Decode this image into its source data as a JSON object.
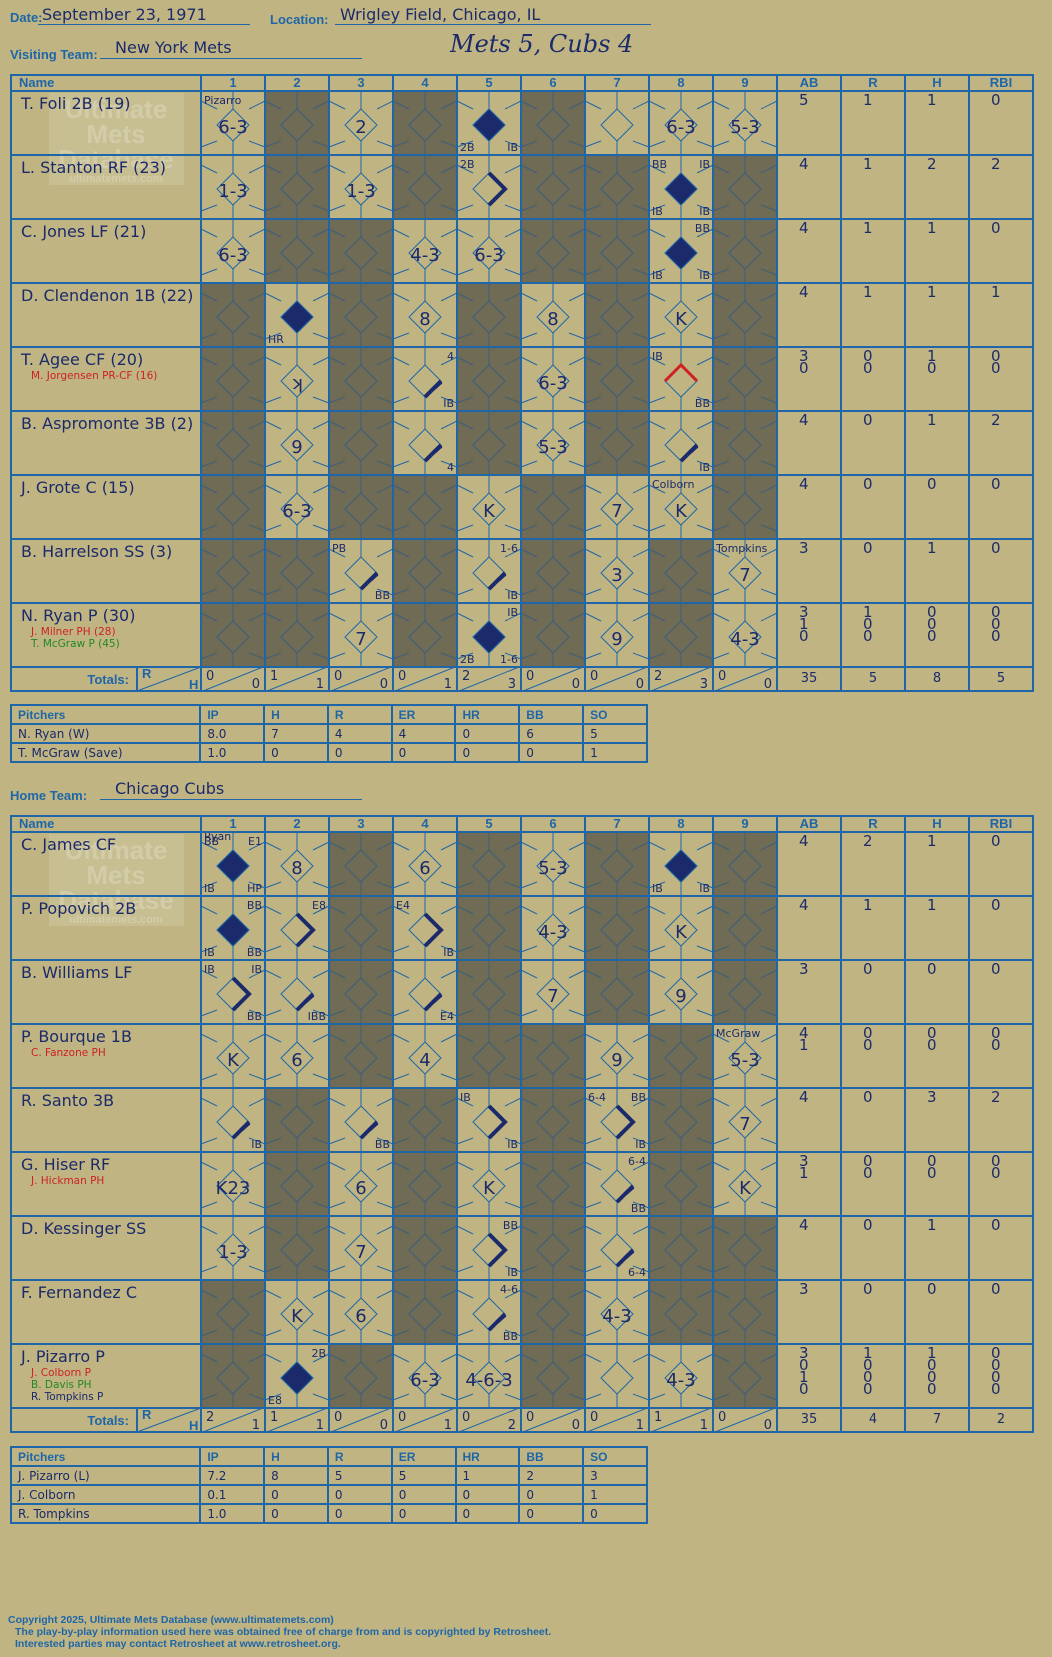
{
  "header": {
    "date_label": "Date:",
    "date": "September 23, 1971",
    "location_label": "Location:",
    "location": "Wrigley Field, Chicago, IL",
    "game_title": "Mets 5, Cubs 4"
  },
  "visitor": {
    "team_label": "Visiting Team:",
    "team": "New York Mets",
    "headers": [
      "Name",
      "1",
      "2",
      "3",
      "4",
      "5",
      "6",
      "7",
      "8",
      "9",
      "AB",
      "R",
      "H",
      "RBI"
    ],
    "totals_label": "Totals:",
    "rh_label": [
      "R",
      "H"
    ],
    "watermark": [
      "Ultimate",
      "Mets",
      "Database",
      "ultimatemets.com"
    ],
    "players": [
      {
        "name": "T. Foli 2B (19)",
        "subs": [],
        "stats": [
          [
            "5",
            "1",
            "1",
            "0"
          ]
        ],
        "shaded": [
          2,
          4,
          6
        ],
        "cells": {
          "1": {
            "r": "6-3",
            "tl": "Pizarro",
            "tlcolor": "red"
          },
          "3": {
            "r": "2"
          },
          "5": {
            "dia": "score",
            "bl": "2B",
            "br": "IB"
          },
          "8": {
            "r": "6-3"
          },
          "9": {
            "r": "5-3"
          }
        }
      },
      {
        "name": "L. Stanton RF (23)",
        "subs": [],
        "stats": [
          [
            "4",
            "1",
            "2",
            "2"
          ]
        ],
        "shaded": [
          2,
          4,
          6,
          7,
          9
        ],
        "cells": {
          "1": {
            "r": "1-3"
          },
          "3": {
            "r": "1-3"
          },
          "5": {
            "dia": "2nd",
            "tl": "2B"
          },
          "8": {
            "dia": "score",
            "tl": "BB",
            "tr": "IB",
            "bl": "IB",
            "br": "IB"
          }
        }
      },
      {
        "name": "C. Jones LF (21)",
        "subs": [],
        "stats": [
          [
            "4",
            "1",
            "1",
            "0"
          ]
        ],
        "shaded": [
          2,
          3,
          6,
          7,
          9
        ],
        "cells": {
          "1": {
            "r": "6-3"
          },
          "4": {
            "r": "4-3"
          },
          "5": {
            "r": "6-3"
          },
          "8": {
            "dia": "score",
            "tr": "BB",
            "bl": "IB",
            "br": "IB"
          }
        }
      },
      {
        "name": "D. Clendenon 1B (22)",
        "subs": [],
        "stats": [
          [
            "4",
            "1",
            "1",
            "1"
          ]
        ],
        "shaded": [
          1,
          3,
          5,
          7,
          9
        ],
        "cells": {
          "2": {
            "dia": "score",
            "bl": "HR"
          },
          "4": {
            "r": "8"
          },
          "6": {
            "r": "8"
          },
          "8": {
            "r": "K"
          }
        }
      },
      {
        "name": "T. Agee CF (20)",
        "subs": [
          {
            "name": "M. Jorgensen PR-CF (16)",
            "color": "red"
          }
        ],
        "stats": [
          [
            "3",
            "0",
            "1",
            "0"
          ],
          [
            "0",
            "0",
            "0",
            "0"
          ]
        ],
        "shaded": [
          1,
          3,
          5,
          7,
          9
        ],
        "cells": {
          "2": {
            "r": "ʞ"
          },
          "4": {
            "dia": "1st",
            "tr": "4",
            "br": "IB"
          },
          "6": {
            "r": "6-3"
          },
          "8": {
            "dia": "red3",
            "tl": "IB",
            "tlcolor": "red",
            "br": "BB"
          }
        }
      },
      {
        "name": "B. Aspromonte 3B (2)",
        "subs": [],
        "stats": [
          [
            "4",
            "0",
            "1",
            "2"
          ]
        ],
        "shaded": [
          1,
          3,
          5,
          7,
          9
        ],
        "cells": {
          "2": {
            "r": "9"
          },
          "4": {
            "dia": "1st",
            "br": "4"
          },
          "6": {
            "r": "5-3"
          },
          "8": {
            "dia": "1st",
            "br": "IB"
          }
        }
      },
      {
        "name": "J. Grote C (15)",
        "subs": [],
        "stats": [
          [
            "4",
            "0",
            "0",
            "0"
          ]
        ],
        "shaded": [
          1,
          3,
          4,
          6,
          9
        ],
        "cells": {
          "2": {
            "r": "6-3"
          },
          "5": {
            "r": "K"
          },
          "7": {
            "r": "7"
          },
          "8": {
            "r": "K",
            "tl": "Colborn",
            "tlcolor": "red"
          }
        }
      },
      {
        "name": "B. Harrelson SS (3)",
        "subs": [],
        "stats": [
          [
            "3",
            "0",
            "1",
            "0"
          ]
        ],
        "shaded": [
          1,
          2,
          4,
          6,
          8
        ],
        "cells": {
          "3": {
            "dia": "1st",
            "tl": "PB",
            "br": "BB"
          },
          "5": {
            "dia": "1st",
            "tr": "1-6",
            "br": "IB"
          },
          "7": {
            "r": "3"
          },
          "9": {
            "r": "7",
            "tl": "Tompkins",
            "tlcolor": "red"
          }
        }
      },
      {
        "name": "N. Ryan P (30)",
        "subs": [
          {
            "name": "J. Milner PH (28)",
            "color": "red"
          },
          {
            "name": "T. McGraw P (45)",
            "color": "green"
          }
        ],
        "stats": [
          [
            "3",
            "1",
            "0",
            "0"
          ],
          [
            "1",
            "0",
            "0",
            "0"
          ],
          [
            "0",
            "0",
            "0",
            "0"
          ]
        ],
        "shaded": [
          1,
          2,
          4,
          6,
          8
        ],
        "cells": {
          "3": {
            "r": "7"
          },
          "5": {
            "dia": "score",
            "tr": "IB",
            "bl": "2B",
            "br": "1-6"
          },
          "7": {
            "r": "9"
          },
          "9": {
            "r": "4-3",
            "rcolor": "red"
          }
        }
      }
    ],
    "totals": {
      "innings": [
        [
          "0",
          "0"
        ],
        [
          "1",
          "1"
        ],
        [
          "0",
          "0"
        ],
        [
          "0",
          "1"
        ],
        [
          "2",
          "3"
        ],
        [
          "0",
          "0"
        ],
        [
          "0",
          "0"
        ],
        [
          "2",
          "3"
        ],
        [
          "0",
          "0"
        ]
      ],
      "stats": [
        "35",
        "5",
        "8",
        "5"
      ]
    },
    "pitchers": {
      "headers": [
        "Pitchers",
        "IP",
        "H",
        "R",
        "ER",
        "HR",
        "BB",
        "SO"
      ],
      "rows": [
        [
          "N. Ryan (W)",
          "8.0",
          "7",
          "4",
          "4",
          "0",
          "6",
          "5"
        ],
        [
          "T. McGraw (Save)",
          "1.0",
          "0",
          "0",
          "0",
          "0",
          "0",
          "1"
        ]
      ]
    }
  },
  "home": {
    "team_label": "Home Team:",
    "team": "Chicago Cubs",
    "headers": [
      "Name",
      "1",
      "2",
      "3",
      "4",
      "5",
      "6",
      "7",
      "8",
      "9",
      "AB",
      "R",
      "H",
      "RBI"
    ],
    "totals_label": "Totals:",
    "rh_label": [
      "R",
      "H"
    ],
    "watermark": [
      "Ultimate",
      "Mets",
      "Database",
      "ultimatemets.com"
    ],
    "players": [
      {
        "name": "C. James CF",
        "subs": [],
        "stats": [
          [
            "4",
            "2",
            "1",
            "0"
          ]
        ],
        "shaded": [
          3,
          5,
          7,
          9
        ],
        "cells": {
          "1": {
            "dia": "score",
            "tl": "BB",
            "tr": "E1",
            "bl": "IB",
            "br": "HP",
            "top": "Ryan",
            "topcolor": "red"
          },
          "2": {
            "r": "8"
          },
          "4": {
            "r": "6"
          },
          "6": {
            "r": "5-3"
          },
          "8": {
            "dia": "score",
            "bl": "IB",
            "br": "IB"
          }
        }
      },
      {
        "name": "P. Popovich 2B",
        "subs": [],
        "stats": [
          [
            "4",
            "1",
            "1",
            "0"
          ]
        ],
        "shaded": [
          3,
          5,
          7,
          9
        ],
        "cells": {
          "1": {
            "dia": "score",
            "tr": "BB",
            "bl": "IB",
            "br": "BB"
          },
          "2": {
            "dia": "2nd",
            "tr": "E8"
          },
          "4": {
            "dia": "2nd",
            "tl": "E4",
            "br": "IB"
          },
          "6": {
            "r": "4-3"
          },
          "8": {
            "r": "K"
          }
        }
      },
      {
        "name": "B. Williams LF",
        "subs": [],
        "stats": [
          [
            "3",
            "0",
            "0",
            "0"
          ]
        ],
        "shaded": [
          3,
          5,
          7,
          9
        ],
        "cells": {
          "1": {
            "dia": "2nd",
            "tl": "IB",
            "tr": "IB",
            "br": "BB"
          },
          "2": {
            "dia": "1st",
            "br": "IBB"
          },
          "4": {
            "dia": "1st",
            "br": "E4"
          },
          "6": {
            "r": "7"
          },
          "8": {
            "r": "9"
          }
        }
      },
      {
        "name": "P. Bourque 1B",
        "subs": [
          {
            "name": "C. Fanzone PH",
            "color": "red"
          }
        ],
        "stats": [
          [
            "4",
            "0",
            "0",
            "0"
          ],
          [
            "1",
            "0",
            "0",
            "0"
          ]
        ],
        "shaded": [
          3,
          5,
          6,
          8
        ],
        "cells": {
          "1": {
            "r": "K"
          },
          "2": {
            "r": "6"
          },
          "4": {
            "r": "4"
          },
          "7": {
            "r": "9"
          },
          "9": {
            "r": "5-3",
            "rcolor": "red",
            "tl": "McGraw",
            "tlcolor": "red"
          }
        }
      },
      {
        "name": "R. Santo 3B",
        "subs": [],
        "stats": [
          [
            "4",
            "0",
            "3",
            "2"
          ]
        ],
        "shaded": [
          2,
          4,
          6,
          8
        ],
        "cells": {
          "1": {
            "dia": "1st",
            "br": "IB"
          },
          "3": {
            "dia": "1st",
            "br": "BB"
          },
          "5": {
            "dia": "2nd",
            "tl": "IB",
            "br": "IB"
          },
          "7": {
            "dia": "2nd",
            "tl": "6-4",
            "tr": "BB",
            "br": "IB"
          },
          "9": {
            "r": "7"
          }
        }
      },
      {
        "name": "G. Hiser RF",
        "subs": [
          {
            "name": "J. Hickman PH",
            "color": "red"
          }
        ],
        "stats": [
          [
            "3",
            "0",
            "0",
            "0"
          ],
          [
            "1",
            "0",
            "0",
            "0"
          ]
        ],
        "shaded": [
          2,
          4,
          6,
          8
        ],
        "cells": {
          "1": {
            "r": "K23"
          },
          "3": {
            "r": "6"
          },
          "5": {
            "r": "K"
          },
          "7": {
            "dia": "1st",
            "tr": "6-4",
            "br": "BB"
          },
          "9": {
            "r": "K",
            "rcolor": "red"
          }
        }
      },
      {
        "name": "D. Kessinger SS",
        "subs": [],
        "stats": [
          [
            "4",
            "0",
            "1",
            "0"
          ]
        ],
        "shaded": [
          2,
          4,
          6,
          8,
          9
        ],
        "cells": {
          "1": {
            "r": "1-3"
          },
          "3": {
            "r": "7"
          },
          "5": {
            "dia": "2nd",
            "tr": "BB",
            "br": "IB"
          },
          "7": {
            "dia": "1st",
            "br": "6-4"
          }
        }
      },
      {
        "name": "F. Fernandez C",
        "subs": [],
        "stats": [
          [
            "3",
            "0",
            "0",
            "0"
          ]
        ],
        "shaded": [
          1,
          4,
          6,
          8,
          9
        ],
        "cells": {
          "2": {
            "r": "K"
          },
          "3": {
            "r": "6"
          },
          "5": {
            "dia": "1st",
            "tr": "4-6",
            "br": "BB"
          },
          "7": {
            "r": "4-3"
          }
        }
      },
      {
        "name": "J. Pizarro P",
        "subs": [
          {
            "name": "J. Colborn P",
            "color": "red"
          },
          {
            "name": "B. Davis PH",
            "color": "green"
          },
          {
            "name": "R. Tompkins P",
            "color": "navy"
          }
        ],
        "stats": [
          [
            "3",
            "1",
            "1",
            "0"
          ],
          [
            "0",
            "0",
            "0",
            "0"
          ],
          [
            "1",
            "0",
            "0",
            "0"
          ],
          [
            "0",
            "0",
            "0",
            "0"
          ]
        ],
        "shaded": [
          1,
          3,
          6,
          9
        ],
        "cells": {
          "2": {
            "dia": "score",
            "tr": "2B",
            "bl": "E8"
          },
          "4": {
            "r": "6-3"
          },
          "5": {
            "r": "4-6-3"
          },
          "8": {
            "r": "4-3",
            "rcolor": "green"
          }
        }
      }
    ],
    "totals": {
      "innings": [
        [
          "2",
          "1"
        ],
        [
          "1",
          "1"
        ],
        [
          "0",
          "0"
        ],
        [
          "0",
          "1"
        ],
        [
          "0",
          "2"
        ],
        [
          "0",
          "0"
        ],
        [
          "0",
          "1"
        ],
        [
          "1",
          "1"
        ],
        [
          "0",
          "0"
        ]
      ],
      "stats": [
        "35",
        "4",
        "7",
        "2"
      ]
    },
    "pitchers": {
      "headers": [
        "Pitchers",
        "IP",
        "H",
        "R",
        "ER",
        "HR",
        "BB",
        "SO"
      ],
      "rows": [
        [
          "J. Pizarro (L)",
          "7.2",
          "8",
          "5",
          "5",
          "1",
          "2",
          "3"
        ],
        [
          "J. Colborn",
          "0.1",
          "0",
          "0",
          "0",
          "0",
          "0",
          "1"
        ],
        [
          "R. Tompkins",
          "1.0",
          "0",
          "0",
          "0",
          "0",
          "0",
          "0"
        ]
      ]
    }
  },
  "footer": {
    "line1": "Copyright 2025, Ultimate Mets Database (www.ultimatemets.com)",
    "line2": "The play-by-play information used here was obtained free of charge from and is copyrighted by Retrosheet.",
    "line3": "Interested parties may contact Retrosheet at www.retrosheet.org."
  },
  "colors": {
    "line": "#1e66a8",
    "ink": "#1b2a6b",
    "shade": "#6f6b55",
    "paper": "#c0b582",
    "red": "#cc2222",
    "green": "#228822"
  }
}
